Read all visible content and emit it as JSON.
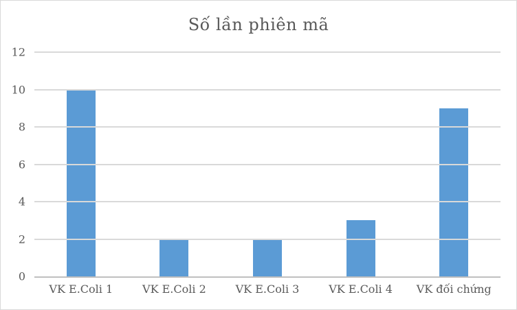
{
  "chart_data": {
    "type": "bar",
    "title": "Số lần phiên mã",
    "categories": [
      "VK E.Coli 1",
      "VK E.Coli 2",
      "VK E.Coli 3",
      "VK E.Coli 4",
      "VK đối chứng"
    ],
    "values": [
      10,
      2,
      2,
      3,
      9
    ],
    "xlabel": "",
    "ylabel": "",
    "ylim": [
      0,
      12
    ],
    "yticks": [
      0,
      2,
      4,
      6,
      8,
      10,
      12
    ],
    "grid": "horizontal",
    "legend": "none",
    "colors": {
      "bar": "#5b9bd5",
      "gridline": "#d9d9d9",
      "axis_line": "#bfbfbf",
      "text": "#595959",
      "frame_border": "#d9d9d9",
      "background": "#ffffff"
    }
  }
}
